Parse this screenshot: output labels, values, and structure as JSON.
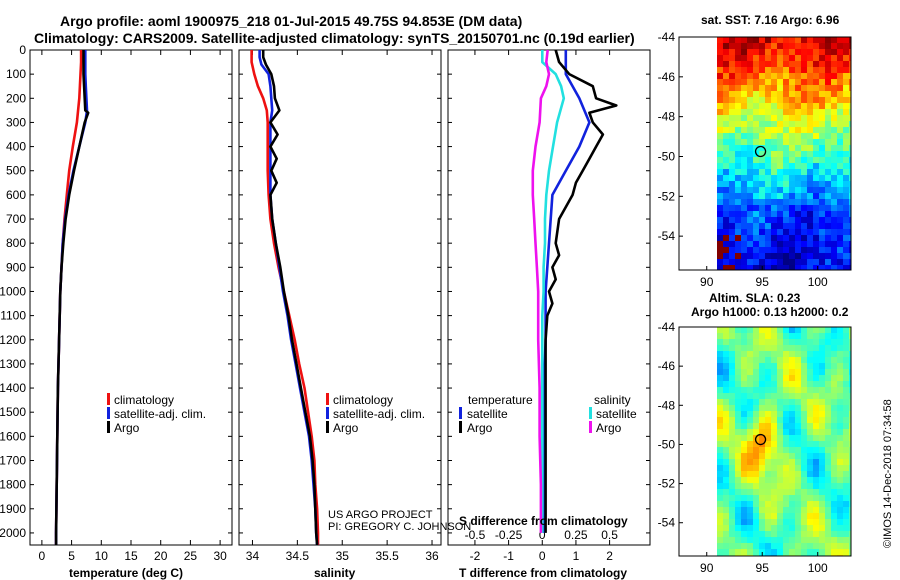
{
  "title": {
    "line1": "Argo profile: aoml 1900975_218 01-Jul-2015 49.75S 94.853E (DM data)",
    "line2": "Climatology: CARS2009. Satellite-adjusted climatology: synTS_20150701.nc (0.19d earlier)"
  },
  "credit": {
    "line1": "US ARGO PROJECT",
    "line2": "PI: GREGORY C. JOHNSON"
  },
  "watermark": "©IMOS 14-Dec-2018 07:34:58",
  "depth_ticks": [
    "0",
    "100",
    "200",
    "300",
    "400",
    "500",
    "600",
    "700",
    "800",
    "900",
    "1000",
    "1100",
    "1200",
    "1300",
    "1400",
    "1500",
    "1600",
    "1700",
    "1800",
    "1900",
    "2000"
  ],
  "colors": {
    "climatology": "#ee1111",
    "satellite": "#1122dd",
    "argo": "#000000",
    "salinity_sat": "#22e0e0",
    "salinity_argo": "#ee11ee"
  },
  "chart_data": [
    {
      "id": "temperature",
      "type": "line",
      "xlabel": "temperature (deg C)",
      "ylabel": "depth",
      "xlim": [
        -2,
        32
      ],
      "ylim": [
        0,
        2050
      ],
      "xticks": [
        0,
        5,
        10,
        15,
        20,
        25,
        30
      ],
      "legend": [
        "climatology",
        "satellite-adj. clim.",
        "Argo"
      ],
      "series": [
        {
          "name": "climatology",
          "color": "#ee1111",
          "depth": [
            0,
            50,
            100,
            150,
            200,
            300,
            400,
            500,
            600,
            700,
            800,
            900,
            1000,
            1200,
            1400,
            1600,
            1800,
            2000,
            2050
          ],
          "values": [
            6.6,
            6.6,
            6.5,
            6.4,
            6.3,
            5.9,
            5.2,
            4.6,
            4.2,
            3.8,
            3.5,
            3.3,
            3.1,
            2.9,
            2.7,
            2.6,
            2.5,
            2.4,
            2.4
          ]
        },
        {
          "name": "satellite-adj. clim.",
          "color": "#1122dd",
          "depth": [
            0,
            50,
            100,
            150,
            200,
            250,
            300,
            400,
            500,
            600,
            700,
            800,
            900,
            1000,
            1200,
            1400,
            1600,
            1800,
            2000,
            2050
          ],
          "values": [
            7.3,
            7.3,
            7.3,
            7.4,
            7.5,
            7.6,
            7.3,
            6.3,
            5.3,
            4.5,
            3.9,
            3.5,
            3.3,
            3.1,
            2.9,
            2.7,
            2.6,
            2.5,
            2.4,
            2.4
          ]
        },
        {
          "name": "Argo",
          "color": "#000000",
          "depth": [
            0,
            50,
            100,
            150,
            200,
            250,
            260,
            300,
            400,
            500,
            600,
            700,
            800,
            900,
            1000,
            1200,
            1400,
            1600,
            1800,
            2000,
            2050
          ],
          "values": [
            7.0,
            7.0,
            7.0,
            7.1,
            7.2,
            7.3,
            7.8,
            7.2,
            6.3,
            5.4,
            4.6,
            4.0,
            3.6,
            3.3,
            3.1,
            2.9,
            2.7,
            2.6,
            2.5,
            2.4,
            2.4
          ]
        }
      ]
    },
    {
      "id": "salinity",
      "type": "line",
      "xlabel": "salinity",
      "ylabel": "depth",
      "xlim": [
        33.85,
        36.1
      ],
      "ylim": [
        0,
        2050
      ],
      "xticks": [
        34,
        34.5,
        35,
        35.5,
        36
      ],
      "legend": [
        "climatology",
        "satellite-adj. clim.",
        "Argo"
      ],
      "series": [
        {
          "name": "climatology",
          "color": "#ee1111",
          "depth": [
            0,
            50,
            100,
            150,
            200,
            250,
            300,
            400,
            500,
            600,
            700,
            800,
            900,
            1000,
            1100,
            1200,
            1300,
            1400,
            1500,
            1600,
            1700,
            1800,
            1900,
            2000,
            2050
          ],
          "values": [
            33.99,
            33.99,
            34.02,
            34.06,
            34.12,
            34.16,
            34.17,
            34.17,
            34.17,
            34.18,
            34.2,
            34.24,
            34.29,
            34.35,
            34.41,
            34.47,
            34.52,
            34.58,
            34.62,
            34.66,
            34.69,
            34.7,
            34.72,
            34.73,
            34.73
          ]
        },
        {
          "name": "satellite-adj. clim.",
          "color": "#1122dd",
          "depth": [
            0,
            30,
            60,
            100,
            150,
            200,
            250,
            300,
            400,
            500,
            600,
            700,
            800,
            900,
            1000,
            1100,
            1200,
            1300,
            1400,
            1500,
            1600,
            1700,
            1800,
            1900,
            2000,
            2050
          ],
          "values": [
            34.08,
            34.08,
            34.1,
            34.18,
            34.2,
            34.21,
            34.22,
            34.2,
            34.2,
            34.2,
            34.2,
            34.22,
            34.26,
            34.3,
            34.34,
            34.39,
            34.43,
            34.48,
            34.53,
            34.58,
            34.63,
            34.66,
            34.68,
            34.7,
            34.71,
            34.72
          ]
        },
        {
          "name": "Argo",
          "color": "#000000",
          "depth": [
            0,
            30,
            60,
            100,
            150,
            200,
            250,
            300,
            350,
            400,
            450,
            500,
            550,
            600,
            700,
            800,
            900,
            1000,
            1100,
            1200,
            1300,
            1400,
            1500,
            1600,
            1700,
            1800,
            1900,
            2000,
            2050
          ],
          "values": [
            34.12,
            34.12,
            34.15,
            34.21,
            34.24,
            34.25,
            34.3,
            34.2,
            34.28,
            34.2,
            34.27,
            34.21,
            34.27,
            34.2,
            34.22,
            34.26,
            34.31,
            34.35,
            34.4,
            34.44,
            34.49,
            34.54,
            34.59,
            34.64,
            34.67,
            34.69,
            34.7,
            34.71,
            34.72
          ]
        }
      ]
    },
    {
      "id": "difference",
      "type": "line",
      "xlabel": "T difference from climatology",
      "xlabel_top": "S difference from climatology",
      "ylabel": "depth",
      "xlim": [
        -2.8,
        3.2
      ],
      "ylim": [
        0,
        2050
      ],
      "xticks": [
        -2,
        -1,
        0,
        1,
        2
      ],
      "xticks_top": [
        -0.5,
        -0.25,
        0,
        0.25,
        0.5
      ],
      "legend_left_title": "temperature",
      "legend_right_title": "salinity",
      "legend": [
        "satellite",
        "Argo",
        "satellite",
        "Argo"
      ],
      "series": [
        {
          "name": "T satellite",
          "color": "#1122dd",
          "depth": [
            0,
            100,
            200,
            300,
            400,
            500,
            600,
            800,
            1000,
            1200,
            1400,
            1600,
            1800,
            2000
          ],
          "values": [
            0.7,
            0.7,
            1.1,
            1.4,
            1.1,
            0.7,
            0.3,
            0.2,
            0.1,
            0.1,
            0.05,
            0.05,
            0.05,
            0.05
          ]
        },
        {
          "name": "T Argo",
          "color": "#000000",
          "depth": [
            0,
            50,
            100,
            150,
            200,
            230,
            260,
            300,
            350,
            400,
            450,
            500,
            550,
            600,
            700,
            800,
            850,
            900,
            950,
            1000,
            1050,
            1100,
            1200,
            1400,
            1600,
            1800,
            2000
          ],
          "values": [
            0.4,
            0.5,
            0.8,
            1.5,
            1.6,
            2.2,
            1.4,
            1.5,
            1.8,
            1.6,
            1.4,
            1.2,
            1.0,
            0.9,
            0.5,
            0.4,
            0.5,
            0.3,
            0.4,
            0.2,
            0.3,
            0.15,
            0.1,
            0.1,
            0.1,
            0.1,
            0.1
          ]
        },
        {
          "name": "S satellite",
          "color": "#22e0e0",
          "depth": [
            0,
            50,
            100,
            150,
            200,
            300,
            400,
            500,
            600,
            700,
            800,
            900,
            1000,
            1100,
            1200,
            1400,
            1600,
            1800,
            2000
          ],
          "values": [
            0.0,
            0.0,
            0.1,
            0.14,
            0.16,
            0.11,
            0.08,
            0.05,
            0.03,
            0.02,
            0.02,
            0.01,
            0.01,
            0.0,
            0.0,
            0.0,
            0.0,
            0.0,
            0.0
          ]
        },
        {
          "name": "S Argo",
          "color": "#ee11ee",
          "depth": [
            0,
            50,
            100,
            150,
            200,
            300,
            400,
            500,
            600,
            700,
            800,
            900,
            1000,
            1200,
            1400,
            1600,
            1800,
            2000
          ],
          "values": [
            0.04,
            0.03,
            0.05,
            0.03,
            -0.01,
            -0.02,
            -0.05,
            -0.07,
            -0.07,
            -0.06,
            -0.05,
            -0.04,
            -0.03,
            -0.03,
            -0.02,
            -0.02,
            -0.01,
            -0.01
          ]
        }
      ]
    },
    {
      "id": "sst_map",
      "type": "heatmap",
      "title": "sat. SST: 7.16 Argo: 6.96",
      "xticks": [
        90,
        95,
        100
      ],
      "yticks": [
        -44,
        -46,
        -48,
        -50,
        -52,
        -54
      ],
      "xlim": [
        87.5,
        103
      ],
      "ylim": [
        -55.7,
        -44
      ],
      "marker": [
        94.85,
        -49.75
      ]
    },
    {
      "id": "sla_map",
      "type": "heatmap",
      "title_line1": "Altim. SLA: 0.23",
      "title_line2": "Argo h1000: 0.13 h2000: 0.2",
      "xticks": [
        90,
        95,
        100
      ],
      "yticks": [
        -44,
        -46,
        -48,
        -50,
        -52,
        -54
      ],
      "xlim": [
        87.5,
        103
      ],
      "ylim": [
        -55.7,
        -44
      ],
      "marker": [
        94.85,
        -49.75
      ]
    }
  ]
}
